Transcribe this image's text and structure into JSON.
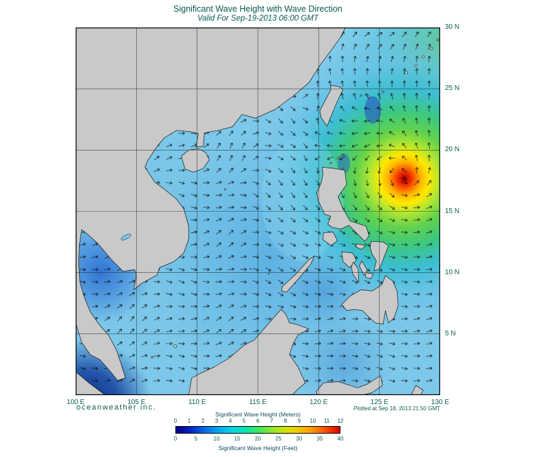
{
  "header": {
    "title": "Significant Wave Height with Wave Direction",
    "subtitle": "Valid For Sep-19-2013 06:00 GMT"
  },
  "map": {
    "lon_labels": [
      "100 E",
      "105 E",
      "110 E",
      "115 E",
      "120 E",
      "125 E",
      "130 E"
    ],
    "lat_labels": [
      "30 N",
      "25 N",
      "20 N",
      "15 N",
      "10 N",
      "5 N"
    ]
  },
  "footer": {
    "brand": "oceanweather inc.",
    "plotted": "Plotted at Sep 18, 2013 21:50 GMT"
  },
  "colorbar": {
    "meters_label": "Significant Wave Height (Meters)",
    "meters_ticks": [
      "0",
      "1",
      "2",
      "3",
      "4",
      "5",
      "6",
      "7",
      "8",
      "9",
      "10",
      "11",
      "12"
    ],
    "feet_label": "Significant Wave Height (Feet)",
    "feet_ticks": [
      "0",
      "5",
      "10",
      "15",
      "20",
      "25",
      "30",
      "35",
      "40"
    ],
    "gradient": [
      "#000082",
      "#0020c8",
      "#0064e6",
      "#00a0f0",
      "#00d2e6",
      "#00e6b4",
      "#3ce65a",
      "#8ce632",
      "#d2e600",
      "#f0c800",
      "#ff9600",
      "#ff4b00",
      "#dc0000"
    ]
  },
  "colors": {
    "ocean": "#76c4e7",
    "land": "#c9c9c9",
    "text": "#0a5a50",
    "storm_peak": "#c80000"
  }
}
